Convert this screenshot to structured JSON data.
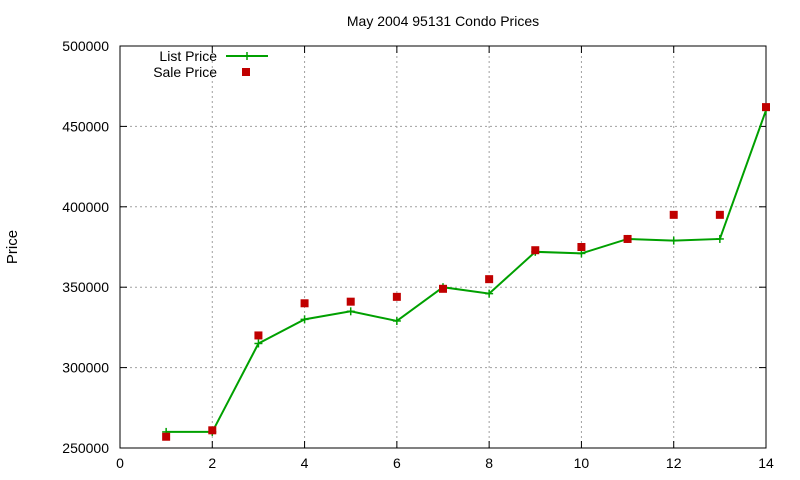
{
  "chart_data": {
    "type": "line",
    "title": "May 2004 95131 Condo Prices",
    "xlabel": "",
    "ylabel": "Price",
    "xlim": [
      0,
      14
    ],
    "ylim": [
      250000,
      500000
    ],
    "x_ticks": [
      0,
      2,
      4,
      6,
      8,
      10,
      12,
      14
    ],
    "y_ticks": [
      250000,
      300000,
      350000,
      400000,
      450000,
      500000
    ],
    "grid": true,
    "legend_position": "top-left",
    "series": [
      {
        "name": "List Price",
        "style": "line+points",
        "color": "#00a000",
        "x": [
          1,
          2,
          3,
          4,
          5,
          6,
          7,
          8,
          9,
          10,
          11,
          12,
          13,
          14
        ],
        "y": [
          260000,
          260000,
          315000,
          330000,
          335000,
          329000,
          350000,
          346000,
          372000,
          371000,
          380000,
          379000,
          380000,
          460000
        ]
      },
      {
        "name": "Sale Price",
        "style": "points",
        "color": "#c00000",
        "x": [
          1,
          2,
          3,
          4,
          5,
          6,
          7,
          8,
          9,
          10,
          11,
          12,
          13,
          14
        ],
        "y": [
          257000,
          261000,
          320000,
          340000,
          341000,
          344000,
          349000,
          355000,
          373000,
          375000,
          380000,
          395000,
          395000,
          462000
        ]
      }
    ]
  }
}
